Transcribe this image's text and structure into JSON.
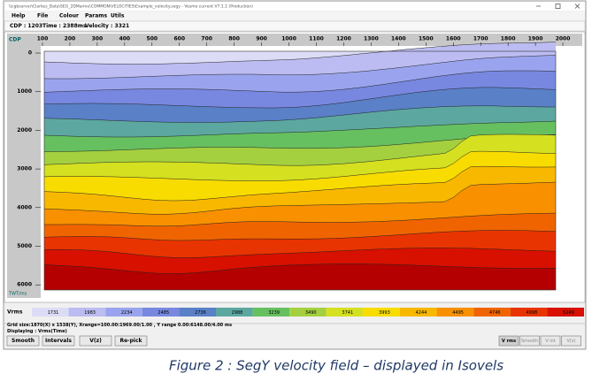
{
  "window": {
    "title": "\\\\cgbserver\\Clarkes_Data\\SEG_2DMarine\\COMMON\\VELOCITIES\\Example_velocity.segy - Vesmo current V7.1.1 (Production)",
    "menu": [
      "Help",
      "File",
      "Colour",
      "Params",
      "Utils"
    ],
    "status": [
      "CDP : 1203",
      "Time : 2388ms",
      "Velocity : 3321"
    ]
  },
  "plot": {
    "x_axis_label": "CDP",
    "y_axis_label": "TWT/ms",
    "x_ticks": [
      100,
      200,
      300,
      400,
      500,
      600,
      700,
      800,
      900,
      1000,
      1100,
      1200,
      1300,
      1400,
      1500,
      1600,
      1700,
      1800,
      1900,
      2000
    ],
    "y_ticks": [
      0,
      1000,
      2000,
      3000,
      4000,
      5000,
      6000
    ]
  },
  "colour_bar": {
    "label": "Vrms",
    "values": [
      1731,
      1983,
      2234,
      2485,
      2736,
      2988,
      3239,
      3490,
      3741,
      3993,
      4244,
      4495,
      4746,
      4998,
      5249
    ]
  },
  "info": [
    "Grid size:1870(X) x 1538(Y), Xrange=100.00:1969.00/1.00 , Y range 0.00:6148.00/4.00 ms",
    "Displaying : Vrms(Time)"
  ],
  "buttons_left": [
    "Smooth",
    "Intervals",
    "V(z)",
    "Re-pick"
  ],
  "buttons_right": [
    "V rms",
    "Smooth",
    "V int",
    "V(z)"
  ],
  "caption": "Figure 2 : SegY velocity field – displayed in Isovels"
}
